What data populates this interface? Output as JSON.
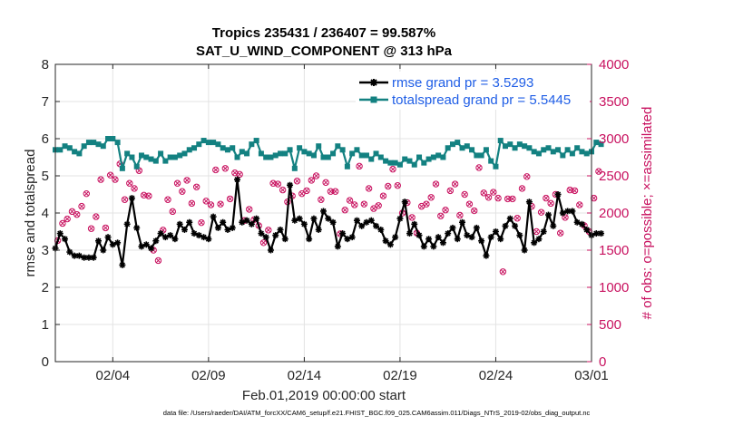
{
  "chart_data": {
    "type": "line",
    "title": "Tropics 235431 / 236407 = 99.587%",
    "subtitle": "SAT_U_WIND_COMPONENT @ 313 hPa",
    "xlabel": "Feb.01,2019 00:00:00 start",
    "ylabel": "rmse and totalspread",
    "ylabel_right": "# of obs: o=possible; ×=assimilated",
    "footnote": "data file: /Users/raeder/DAI/ATM_forcXX/CAM6_setup/f.e21.FHIST_BGC.f09_025.CAM6assim.011/Diags_NTrS_2019-02/obs_diag_output.nc",
    "x_range": [
      1,
      29
    ],
    "ylim": [
      0,
      8
    ],
    "ylim_right": [
      0,
      4000
    ],
    "x_ticks": [
      {
        "v": 4,
        "label": "02/04"
      },
      {
        "v": 9,
        "label": "02/09"
      },
      {
        "v": 14,
        "label": "02/14"
      },
      {
        "v": 19,
        "label": "02/19"
      },
      {
        "v": 24,
        "label": "02/24"
      },
      {
        "v": 29,
        "label": "03/01"
      }
    ],
    "y_ticks": [
      "0",
      "1",
      "2",
      "3",
      "4",
      "5",
      "6",
      "7",
      "8"
    ],
    "y_ticks_right": [
      "0",
      "500",
      "1000",
      "1500",
      "2000",
      "2500",
      "3000",
      "3500",
      "4000"
    ],
    "grid": true,
    "legend_position": "top-right",
    "colors": {
      "rmse": "#000000",
      "spread": "#138181",
      "obs": "#c8115f"
    },
    "series": [
      {
        "name": "rmse grand pr = 3.5293",
        "step": 0.25,
        "values": [
          3.05,
          3.45,
          3.3,
          2.95,
          2.85,
          2.85,
          2.8,
          2.8,
          2.8,
          3.25,
          3.0,
          3.35,
          3.15,
          3.2,
          2.6,
          3.7,
          4.4,
          3.6,
          3.1,
          3.15,
          3.05,
          3.25,
          3.45,
          3.35,
          3.4,
          3.3,
          3.7,
          3.55,
          3.75,
          3.45,
          3.4,
          3.35,
          3.3,
          3.9,
          3.6,
          3.75,
          3.55,
          3.6,
          4.9,
          3.75,
          3.8,
          3.7,
          3.85,
          3.45,
          3.35,
          3.0,
          3.4,
          3.55,
          3.3,
          4.75,
          3.8,
          3.85,
          3.7,
          3.3,
          3.85,
          3.55,
          4.05,
          3.85,
          3.75,
          3.1,
          3.45,
          3.3,
          3.35,
          3.8,
          3.65,
          3.75,
          3.8,
          3.65,
          3.55,
          3.25,
          3.15,
          3.35,
          3.85,
          4.3,
          3.45,
          3.7,
          3.4,
          3.1,
          3.3,
          3.1,
          3.35,
          3.2,
          3.45,
          3.6,
          3.3,
          3.75,
          3.4,
          3.35,
          3.6,
          3.25,
          2.85,
          3.35,
          3.5,
          3.3,
          3.65,
          3.85,
          3.65,
          3.4,
          3.0,
          4.3,
          3.2,
          3.3,
          3.5,
          3.95,
          3.65,
          4.5,
          4.0,
          4.05,
          4.05,
          3.75,
          3.7,
          3.55,
          3.4,
          3.45,
          3.45
        ]
      },
      {
        "name": "totalspread grand pr = 5.5445",
        "step": 0.25,
        "values": [
          5.7,
          5.7,
          5.8,
          5.75,
          5.65,
          5.6,
          5.8,
          5.9,
          5.9,
          5.85,
          5.8,
          6.0,
          6.0,
          5.9,
          5.2,
          5.6,
          5.5,
          5.25,
          5.55,
          5.5,
          5.45,
          5.4,
          5.6,
          5.4,
          5.5,
          5.5,
          5.55,
          5.6,
          5.7,
          5.75,
          5.85,
          5.95,
          5.9,
          5.9,
          5.85,
          5.75,
          5.7,
          5.75,
          5.5,
          5.65,
          5.6,
          5.85,
          5.95,
          5.6,
          5.5,
          5.5,
          5.55,
          5.6,
          5.6,
          5.7,
          5.2,
          5.75,
          5.65,
          5.6,
          5.55,
          5.8,
          5.5,
          5.5,
          5.6,
          5.8,
          5.7,
          5.25,
          5.6,
          5.7,
          5.55,
          5.55,
          5.45,
          5.6,
          5.5,
          5.4,
          5.35,
          5.35,
          5.3,
          5.45,
          5.4,
          5.3,
          5.5,
          5.35,
          5.45,
          5.5,
          5.55,
          5.5,
          5.75,
          5.85,
          5.9,
          5.75,
          5.8,
          5.7,
          5.55,
          5.55,
          5.7,
          5.4,
          5.25,
          5.95,
          5.8,
          5.85,
          5.75,
          5.85,
          5.8,
          5.75,
          5.65,
          5.6,
          5.7,
          5.75,
          5.65,
          5.7,
          5.55,
          5.7,
          5.6,
          5.75,
          5.65,
          5.6,
          5.65,
          5.9,
          5.85
        ]
      }
    ],
    "obs_possible_start": 1.125,
    "obs_possible_step": 0.25,
    "obs_possible": [
      1630,
      1860,
      1920,
      2020,
      1980,
      2090,
      2260,
      1790,
      1950,
      2450,
      1800,
      2510,
      2450,
      2660,
      2180,
      2400,
      2330,
      2570,
      2240,
      2230,
      1500,
      1360,
      1770,
      2180,
      2020,
      2400,
      2290,
      2440,
      2130,
      2350,
      1870,
      2160,
      2110,
      2580,
      2120,
      2600,
      2190,
      2540,
      2520,
      1900,
      2050,
      1910,
      1830,
      1600,
      1770,
      2400,
      2390,
      2310,
      2150,
      2230,
      2430,
      2260,
      2300,
      2440,
      2500,
      2180,
      2410,
      2290,
      2290,
      1720,
      2040,
      2170,
      2110,
      2630,
      2120,
      2330,
      2060,
      2100,
      2230,
      2360,
      2590,
      2370,
      2000,
      2140,
      1940,
      1730,
      2090,
      2120,
      2210,
      2390,
      1960,
      2040,
      2300,
      2390,
      1970,
      2250,
      2120,
      2030,
      2610,
      2270,
      2210,
      2280,
      2200,
      1210,
      2190,
      2190,
      1930,
      2330,
      2490,
      2090,
      1750,
      2010,
      2200,
      2130,
      2250,
      1730,
      1940,
      2310,
      2300,
      2110,
      1830,
      1750,
      2200,
      2560
    ]
  }
}
